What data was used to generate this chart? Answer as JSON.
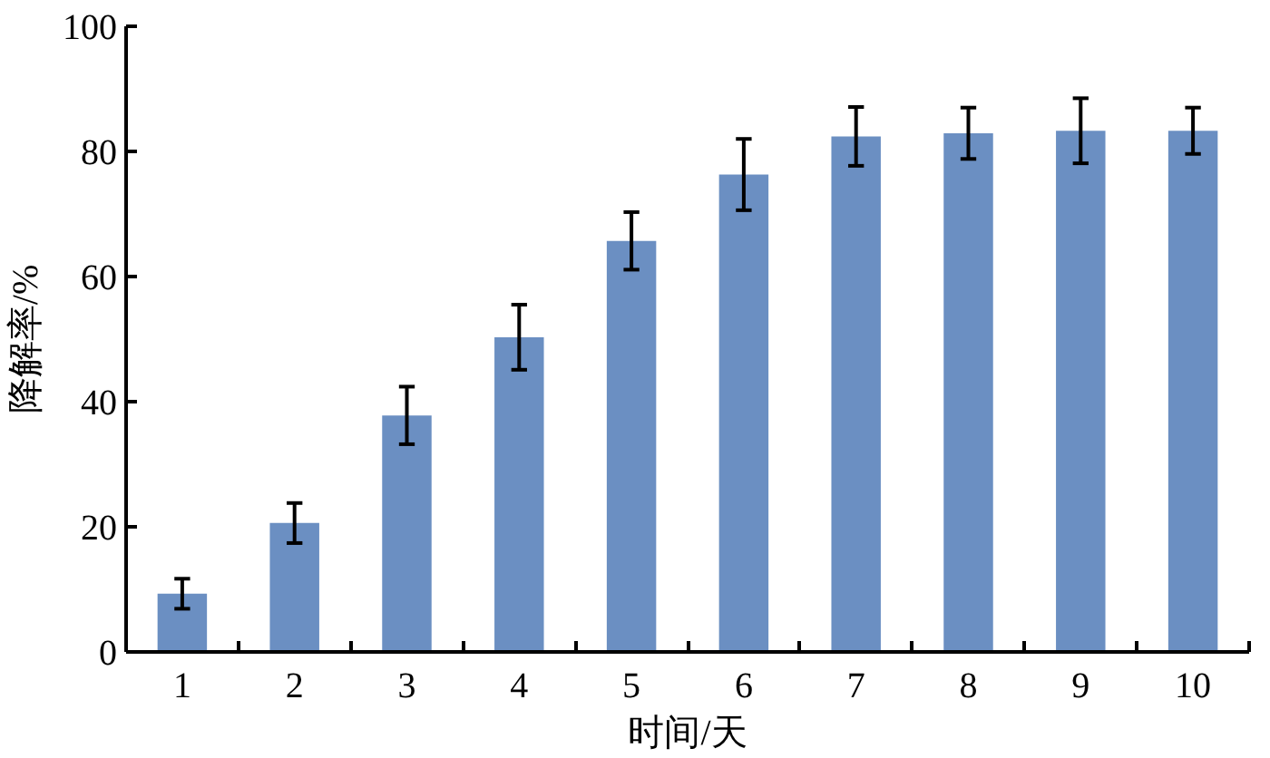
{
  "chart_data": {
    "type": "bar",
    "xlabel": "时间/天",
    "ylabel": "降解率/%",
    "categories": [
      "1",
      "2",
      "3",
      "4",
      "5",
      "6",
      "7",
      "8",
      "9",
      "10"
    ],
    "values": [
      9.3,
      20.6,
      37.8,
      50.3,
      65.7,
      76.3,
      82.4,
      82.9,
      83.3,
      83.3
    ],
    "errors": [
      2.4,
      3.2,
      4.6,
      5.2,
      4.6,
      5.7,
      4.7,
      4.1,
      5.2,
      3.7
    ],
    "color": "#6b8fc2",
    "ylim": [
      0,
      100
    ],
    "yticks": [
      0,
      20,
      40,
      60,
      80,
      100
    ],
    "grid": false
  }
}
